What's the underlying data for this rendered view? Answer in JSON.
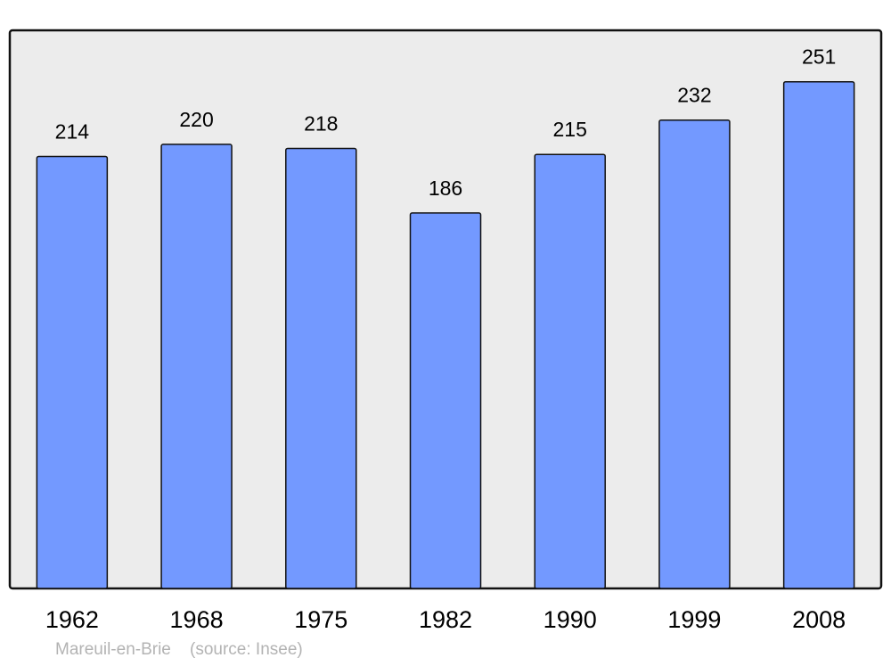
{
  "chart_data": {
    "type": "bar",
    "categories": [
      "1962",
      "1968",
      "1975",
      "1982",
      "1990",
      "1999",
      "2008"
    ],
    "values": [
      214,
      220,
      218,
      186,
      215,
      232,
      251
    ],
    "data_labels": [
      "214",
      "220",
      "218",
      "186",
      "215",
      "232",
      "251"
    ],
    "ylim": [
      0,
      276.5
    ],
    "grid": false,
    "bar_color": "#7399ff",
    "background_color": "#ececec",
    "title": "",
    "xlabel": "",
    "ylabel": ""
  },
  "caption": {
    "place": "Mareuil-en-Brie",
    "source": "(source: Insee)"
  }
}
